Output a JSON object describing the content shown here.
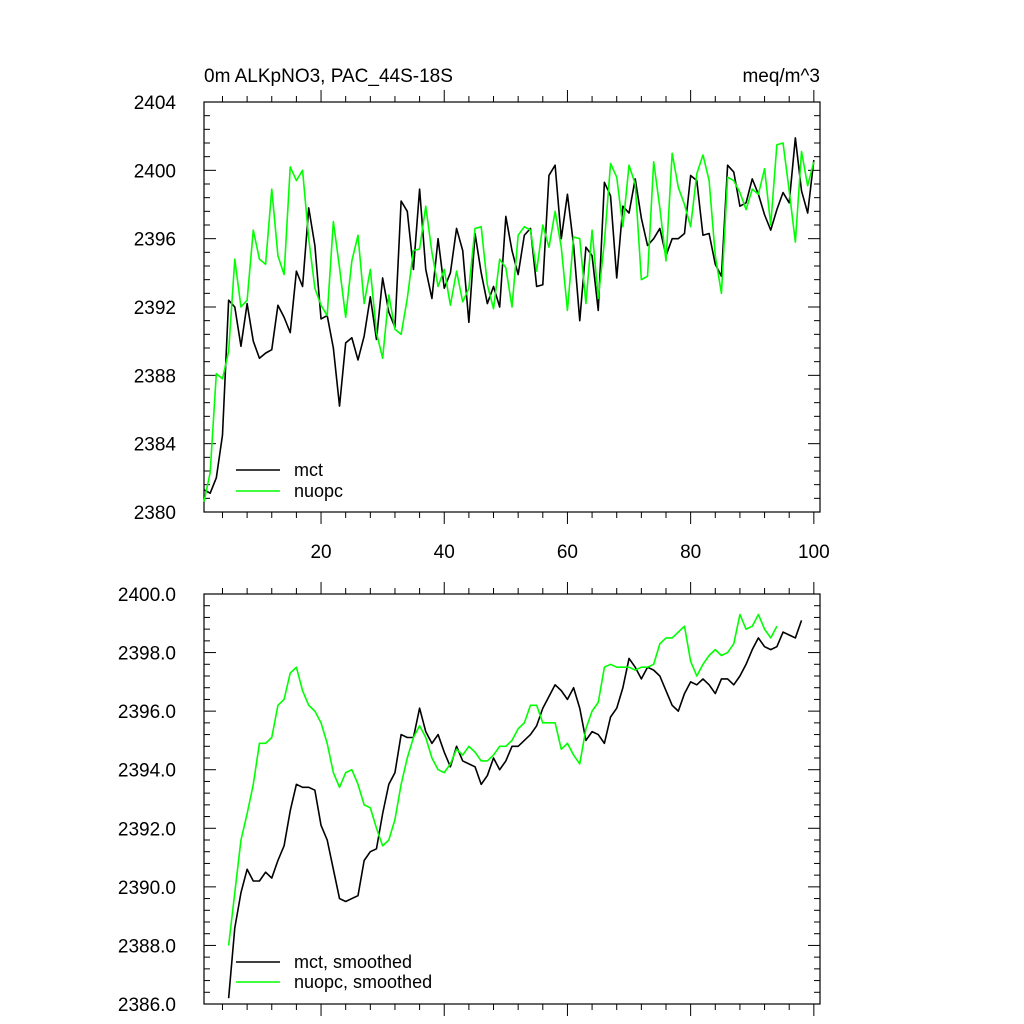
{
  "chart_data": [
    {
      "type": "line",
      "title": "0m ALKpNO3, PAC_44S-18S",
      "units": "meq/m^3",
      "xlim": [
        1,
        101
      ],
      "ylim": [
        2380,
        2404
      ],
      "xticks": [
        20,
        40,
        60,
        80,
        100
      ],
      "yticks": [
        "2380",
        "2384",
        "2388",
        "2392",
        "2396",
        "2400",
        "2404"
      ],
      "yticks_values": [
        2380,
        2384,
        2388,
        2392,
        2396,
        2400,
        2404
      ],
      "legend": {
        "position": "bottom-left"
      },
      "grid": false,
      "series": [
        {
          "name": "mct",
          "color": "#000000",
          "x_start": 1,
          "values": [
            2381.3,
            2381.1,
            2382.0,
            2384.5,
            2392.4,
            2392.0,
            2389.7,
            2392.2,
            2390.0,
            2389.0,
            2389.3,
            2389.5,
            2392.1,
            2391.4,
            2390.5,
            2394.1,
            2393.2,
            2397.8,
            2395.6,
            2391.3,
            2391.5,
            2389.6,
            2386.2,
            2389.9,
            2390.2,
            2388.9,
            2390.3,
            2392.6,
            2390.1,
            2393.7,
            2391.7,
            2390.8,
            2398.2,
            2397.6,
            2394.2,
            2398.9,
            2394.2,
            2392.5,
            2396.0,
            2393.1,
            2394.0,
            2396.6,
            2395.3,
            2391.1,
            2396.3,
            2394.0,
            2392.2,
            2393.2,
            2392.0,
            2397.3,
            2395.3,
            2393.9,
            2396.2,
            2396.6,
            2393.2,
            2393.3,
            2399.7,
            2400.3,
            2396.0,
            2398.6,
            2395.6,
            2391.2,
            2395.5,
            2395.0,
            2391.8,
            2399.3,
            2398.5,
            2393.7,
            2397.9,
            2397.5,
            2399.5,
            2397.2,
            2395.6,
            2396.0,
            2396.6,
            2395.0,
            2396.0,
            2396.0,
            2396.3,
            2399.7,
            2399.4,
            2396.2,
            2396.3,
            2394.5,
            2393.8,
            2400.3,
            2399.9,
            2397.9,
            2398.1,
            2399.5,
            2398.6,
            2397.4,
            2396.5,
            2397.7,
            2398.7,
            2398.1,
            2401.9,
            2398.8,
            2397.5,
            2400.6
          ]
        },
        {
          "name": "nuopc",
          "color": "#00ff00",
          "x_start": 1,
          "values": [
            2380.6,
            2382.3,
            2388.1,
            2387.8,
            2389.4,
            2394.8,
            2392.0,
            2392.4,
            2396.5,
            2394.8,
            2394.5,
            2398.9,
            2395.0,
            2393.9,
            2400.2,
            2399.4,
            2400.0,
            2396.0,
            2393.1,
            2392.1,
            2391.5,
            2397.0,
            2394.3,
            2391.4,
            2394.7,
            2396.2,
            2392.2,
            2394.2,
            2390.5,
            2389.0,
            2392.7,
            2390.7,
            2390.4,
            2392.5,
            2395.3,
            2395.4,
            2397.9,
            2395.2,
            2393.2,
            2394.2,
            2392.1,
            2394.1,
            2392.3,
            2393.1,
            2396.6,
            2396.7,
            2393.3,
            2391.9,
            2394.8,
            2394.3,
            2392.0,
            2396.2,
            2396.7,
            2396.5,
            2394.1,
            2396.8,
            2395.5,
            2397.6,
            2395.5,
            2391.8,
            2396.1,
            2396.0,
            2392.2,
            2396.5,
            2392.5,
            2395.8,
            2400.4,
            2399.6,
            2396.7,
            2400.3,
            2399.2,
            2393.6,
            2393.8,
            2400.5,
            2397.8,
            2394.7,
            2401.0,
            2399.0,
            2398.0,
            2396.7,
            2399.8,
            2400.9,
            2399.4,
            2395.0,
            2392.8,
            2399.6,
            2399.4,
            2398.7,
            2397.7,
            2398.9,
            2398.6,
            2400.1,
            2396.8,
            2401.5,
            2401.6,
            2398.8,
            2395.8,
            2401.1,
            2399.1,
            2400.5
          ]
        }
      ]
    },
    {
      "type": "line",
      "xlim": [
        1,
        101
      ],
      "ylim": [
        2386,
        2400
      ],
      "xticks": [
        20,
        40,
        60,
        80,
        100
      ],
      "yticks": [
        "2386.0",
        "2388.0",
        "2390.0",
        "2392.0",
        "2394.0",
        "2396.0",
        "2398.0",
        "2400.0"
      ],
      "yticks_values": [
        2386,
        2388,
        2390,
        2392,
        2394,
        2396,
        2398,
        2400
      ],
      "legend": {
        "position": "bottom-left"
      },
      "grid": false,
      "series": [
        {
          "name": "mct, smoothed",
          "color": "#000000",
          "x_start": 5,
          "values": [
            2386.2,
            2388.6,
            2389.8,
            2390.6,
            2390.2,
            2390.2,
            2390.5,
            2390.3,
            2390.9,
            2391.4,
            2392.6,
            2393.5,
            2393.4,
            2393.4,
            2393.3,
            2392.1,
            2391.6,
            2390.6,
            2389.6,
            2389.5,
            2389.6,
            2389.7,
            2390.9,
            2391.2,
            2391.3,
            2392.5,
            2393.5,
            2393.9,
            2395.2,
            2395.1,
            2395.1,
            2396.1,
            2395.3,
            2394.9,
            2395.2,
            2394.6,
            2394.1,
            2394.8,
            2394.3,
            2394.2,
            2394.1,
            2393.5,
            2393.8,
            2394.4,
            2394.0,
            2394.3,
            2394.8,
            2394.8,
            2395.0,
            2395.2,
            2395.5,
            2396.1,
            2396.5,
            2396.9,
            2396.7,
            2396.4,
            2396.8,
            2396.1,
            2395.0,
            2395.3,
            2395.2,
            2394.9,
            2395.8,
            2396.1,
            2396.8,
            2397.8,
            2397.5,
            2397.1,
            2397.5,
            2397.4,
            2397.2,
            2396.7,
            2396.2,
            2396.0,
            2396.6,
            2397.0,
            2396.9,
            2397.1,
            2396.9,
            2396.6,
            2397.1,
            2397.1,
            2396.9,
            2397.2,
            2397.6,
            2398.1,
            2398.5,
            2398.2,
            2398.1,
            2398.2,
            2398.7,
            2398.6,
            2398.5,
            2399.1
          ]
        },
        {
          "name": "nuopc, smoothed",
          "color": "#00ff00",
          "x_start": 5,
          "values": [
            2388.0,
            2389.8,
            2391.6,
            2392.5,
            2393.5,
            2394.9,
            2394.9,
            2395.1,
            2396.2,
            2396.4,
            2397.3,
            2397.5,
            2396.7,
            2396.2,
            2396.0,
            2395.6,
            2394.9,
            2393.9,
            2393.4,
            2393.9,
            2394.0,
            2393.5,
            2392.8,
            2392.7,
            2392.0,
            2391.4,
            2391.6,
            2392.3,
            2393.5,
            2394.4,
            2395.1,
            2395.5,
            2395.1,
            2394.4,
            2394.0,
            2393.9,
            2394.2,
            2394.7,
            2394.5,
            2394.8,
            2394.6,
            2394.3,
            2394.3,
            2394.5,
            2394.8,
            2394.8,
            2395.0,
            2395.4,
            2395.6,
            2396.2,
            2396.2,
            2395.6,
            2395.6,
            2395.6,
            2394.7,
            2394.9,
            2394.5,
            2394.2,
            2395.4,
            2396.0,
            2396.3,
            2397.5,
            2397.6,
            2397.5,
            2397.5,
            2397.5,
            2397.4,
            2397.5,
            2397.5,
            2397.6,
            2398.3,
            2398.5,
            2398.5,
            2398.7,
            2398.9,
            2397.7,
            2397.2,
            2397.6,
            2397.9,
            2398.1,
            2397.9,
            2398.0,
            2398.3,
            2399.3,
            2398.8,
            2398.9,
            2399.3,
            2398.8,
            2398.5,
            2398.9
          ]
        }
      ]
    }
  ]
}
